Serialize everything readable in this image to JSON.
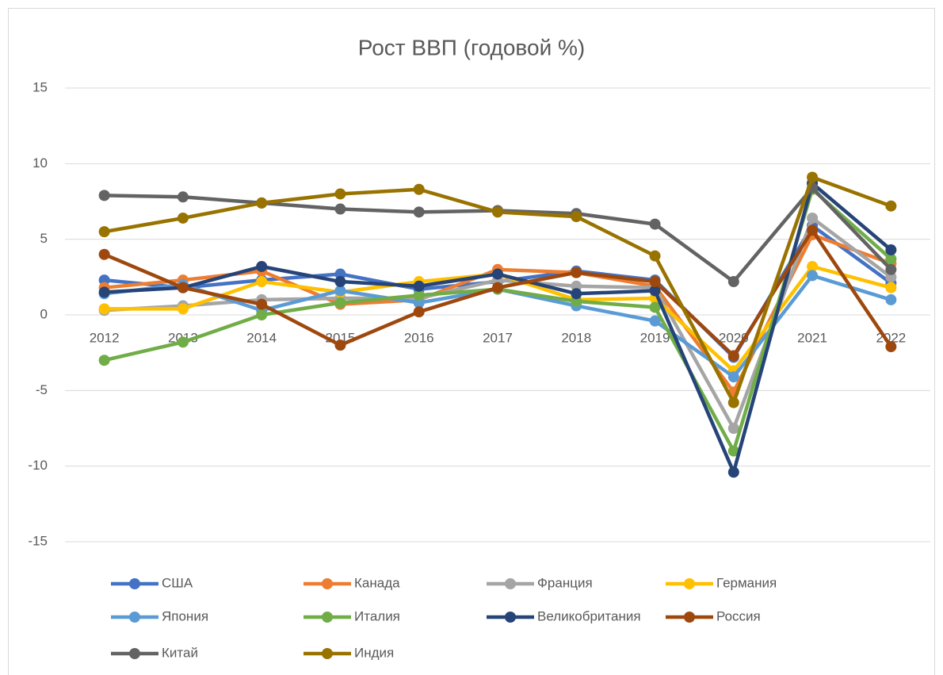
{
  "chart_data": {
    "type": "line",
    "title": "Рост ВВП (годовой %)",
    "categories": [
      "2012",
      "2013",
      "2014",
      "2015",
      "2016",
      "2017",
      "2018",
      "2019",
      "2020",
      "2021",
      "2022"
    ],
    "series": [
      {
        "name": "США",
        "color": "#4472c4",
        "values": [
          2.3,
          1.8,
          2.3,
          2.7,
          1.7,
          2.2,
          2.9,
          2.3,
          -2.8,
          5.9,
          2.1
        ]
      },
      {
        "name": "Канада",
        "color": "#ed7d31",
        "values": [
          1.8,
          2.3,
          2.9,
          0.7,
          1.0,
          3.0,
          2.8,
          1.9,
          -5.1,
          5.3,
          3.4
        ]
      },
      {
        "name": "Франция",
        "color": "#a5a5a5",
        "values": [
          0.3,
          0.6,
          1.0,
          1.1,
          1.1,
          2.3,
          1.9,
          1.8,
          -7.5,
          6.4,
          2.5
        ]
      },
      {
        "name": "Германия",
        "color": "#ffc000",
        "values": [
          0.4,
          0.4,
          2.2,
          1.5,
          2.2,
          2.7,
          1.0,
          1.1,
          -3.7,
          3.2,
          1.8
        ]
      },
      {
        "name": "Япония",
        "color": "#5b9bd5",
        "values": [
          1.4,
          2.0,
          0.3,
          1.6,
          0.8,
          1.7,
          0.6,
          -0.4,
          -4.1,
          2.6,
          1.0
        ]
      },
      {
        "name": "Италия",
        "color": "#70ad47",
        "values": [
          -3.0,
          -1.8,
          0.0,
          0.8,
          1.3,
          1.7,
          0.9,
          0.5,
          -9.0,
          8.3,
          3.7
        ]
      },
      {
        "name": "Великобритания",
        "color": "#264478",
        "values": [
          1.5,
          1.8,
          3.2,
          2.2,
          1.9,
          2.7,
          1.4,
          1.6,
          -10.4,
          8.7,
          4.3
        ]
      },
      {
        "name": "Россия",
        "color": "#9e480e",
        "values": [
          4.0,
          1.8,
          0.7,
          -2.0,
          0.2,
          1.8,
          2.8,
          2.2,
          -2.7,
          5.6,
          -2.1
        ]
      },
      {
        "name": "Китай",
        "color": "#636363",
        "values": [
          7.9,
          7.8,
          7.4,
          7.0,
          6.8,
          6.9,
          6.7,
          6.0,
          2.2,
          8.4,
          3.0
        ]
      },
      {
        "name": "Индия",
        "color": "#997300",
        "values": [
          5.5,
          6.4,
          7.4,
          8.0,
          8.3,
          6.8,
          6.5,
          3.9,
          -5.8,
          9.1,
          7.2
        ]
      }
    ],
    "ylim": [
      -15,
      15
    ],
    "yticks": [
      -15,
      -10,
      -5,
      0,
      5,
      10,
      15
    ],
    "grid": true,
    "legend": "bottom"
  }
}
